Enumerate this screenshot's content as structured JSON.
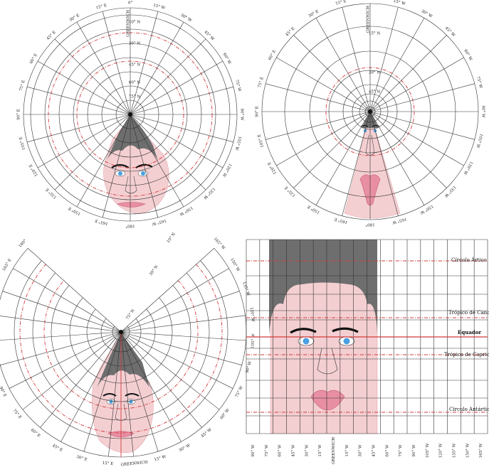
{
  "panels": {
    "polar_equidistant": {
      "longitudes": [
        "0°",
        "15° W",
        "30° W",
        "45° W",
        "60° W",
        "75° W",
        "90° W",
        "105° W",
        "120° W",
        "135° W",
        "150° W",
        "165° W",
        "180°",
        "165° E",
        "150° E",
        "135° E",
        "120° E",
        "105° E",
        "90° E",
        "75° E",
        "60° E",
        "45° E",
        "30° E",
        "15° E"
      ],
      "latitudes": [
        "10° N",
        "30° N",
        "45° N",
        "60° N",
        "75° N"
      ],
      "meridian_label": "GREENWICH"
    },
    "polar_stereographic": {
      "longitudes": [
        "0°",
        "15° W",
        "30° W",
        "45° W",
        "60° W",
        "75° W",
        "90° W",
        "105° W",
        "120° W",
        "135° W",
        "150° W",
        "165° W",
        "180°",
        "165° E",
        "150° E",
        "135° E",
        "120° E",
        "105° E",
        "90° E",
        "75° E",
        "60° E",
        "45° E",
        "30° E",
        "15° E"
      ],
      "latitudes": [
        "15° N",
        "30° N",
        "45° N"
      ],
      "meridian_label": "GREENWICH"
    },
    "conic": {
      "longitudes": [
        "180°",
        "165° E",
        "150° E",
        "135° E",
        "120° E",
        "105° E",
        "90° E",
        "75° E",
        "60° E",
        "45° E",
        "30° E",
        "15° E",
        "GREENWICH",
        "15° W",
        "30° W",
        "45° W",
        "60° W",
        "75° W",
        "90° W",
        "105° W",
        "120° W",
        "135° W",
        "150° W",
        "165° W"
      ],
      "latitudes": [
        "10° N",
        "30° N",
        "75° N"
      ],
      "meridian_label": "GREENWICH"
    },
    "cylindrical": {
      "lines": {
        "arctic": "Círculo Ártico",
        "cancer": "Trópico de Cancer",
        "equator": "Equador",
        "capricorn": "Trópico de Capricórnio",
        "antarctic": "Círculo Antártico"
      },
      "longitudes": [
        "90° W",
        "75° W",
        "60° W",
        "45° W",
        "30° W",
        "15° W",
        "GREENWICH",
        "15° W",
        "30° W",
        "45° W",
        "60° W",
        "75° W",
        "90° W",
        "105° W",
        "120° W",
        "135° W",
        "150° W",
        "165° W"
      ],
      "meridian_label": "GREENWICH"
    }
  },
  "colors": {
    "skin": "#f4cfd2",
    "hair": "#6e6e6e",
    "lips": "#e88fa3",
    "iris": "#4a9fe0",
    "tropics": "#d23a3a"
  }
}
